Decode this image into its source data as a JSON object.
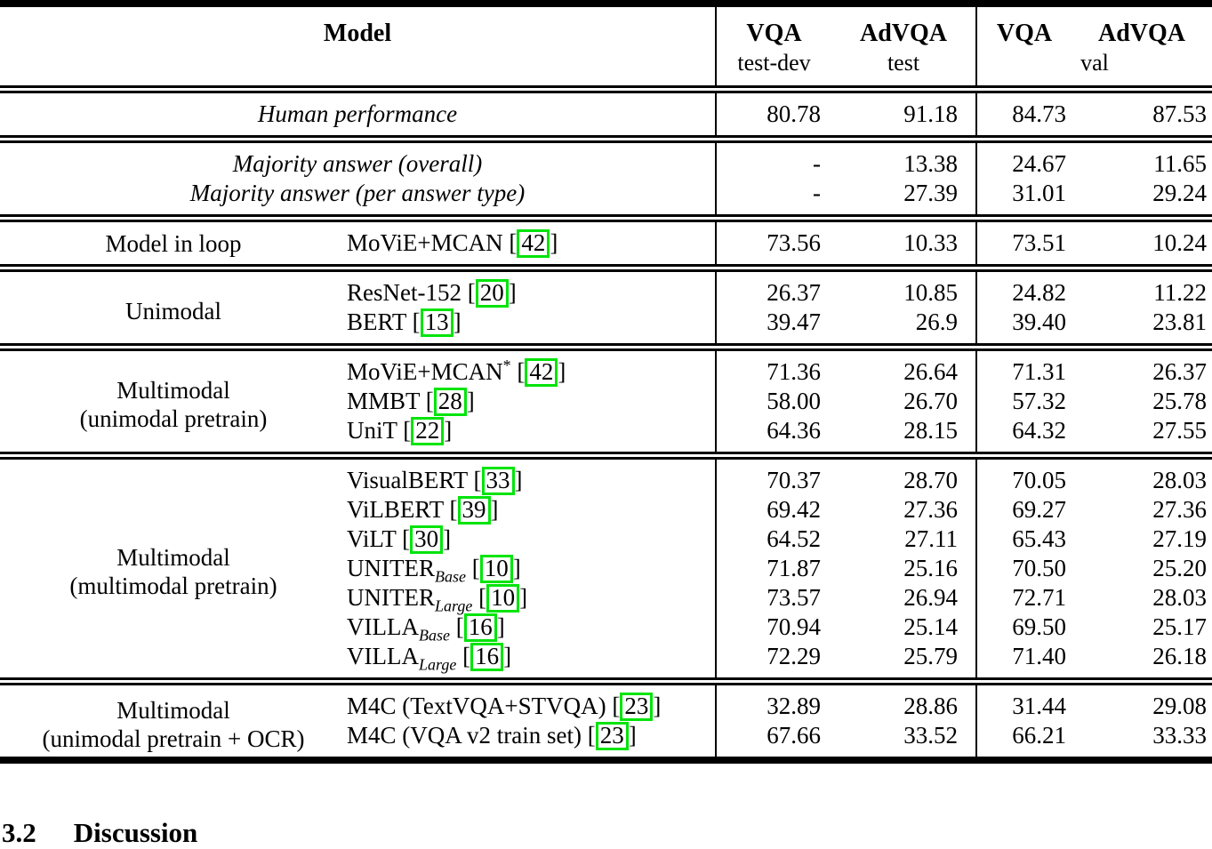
{
  "table": {
    "header": {
      "model": "Model",
      "group1": {
        "col1_top": "VQA",
        "col1_bottom": "test-dev",
        "col2_top": "AdVQA",
        "col2_bottom": "test"
      },
      "group2": {
        "col1_top": "VQA",
        "col2_top": "AdVQA",
        "bottom": "val"
      }
    },
    "sections": [
      {
        "type": "center",
        "rows": [
          {
            "label": "Human performance",
            "values": [
              "80.78",
              "91.18",
              "84.73",
              "87.53"
            ]
          }
        ]
      },
      {
        "type": "center",
        "rows": [
          {
            "label": "Majority answer (overall)",
            "values": [
              "-",
              "13.38",
              "24.67",
              "11.65"
            ]
          },
          {
            "label": "Majority answer (per answer type)",
            "values": [
              "-",
              "27.39",
              "31.01",
              "29.24"
            ]
          }
        ]
      },
      {
        "type": "models",
        "category": [
          "Model in loop"
        ],
        "rows": [
          {
            "name": "MoViE+MCAN",
            "cite": "42",
            "values": [
              "73.56",
              "10.33",
              "73.51",
              "10.24"
            ]
          }
        ]
      },
      {
        "type": "models",
        "category": [
          "Unimodal"
        ],
        "rows": [
          {
            "name": "ResNet-152",
            "cite": "20",
            "values": [
              "26.37",
              "10.85",
              "24.82",
              "11.22"
            ]
          },
          {
            "name": "BERT",
            "cite": "13",
            "values": [
              "39.47",
              "26.9",
              "39.40",
              "23.81"
            ]
          }
        ]
      },
      {
        "type": "models",
        "category": [
          "Multimodal",
          "(unimodal pretrain)"
        ],
        "rows": [
          {
            "name": "MoViE+MCAN",
            "sup": "*",
            "cite": "42",
            "values": [
              "71.36",
              "26.64",
              "71.31",
              "26.37"
            ]
          },
          {
            "name": "MMBT",
            "cite": "28",
            "values": [
              "58.00",
              "26.70",
              "57.32",
              "25.78"
            ]
          },
          {
            "name": "UniT",
            "cite": "22",
            "values": [
              "64.36",
              "28.15",
              "64.32",
              "27.55"
            ]
          }
        ]
      },
      {
        "type": "models",
        "category": [
          "Multimodal",
          "(multimodal pretrain)"
        ],
        "rows": [
          {
            "name": "VisualBERT",
            "cite": "33",
            "values": [
              "70.37",
              "28.70",
              "70.05",
              "28.03"
            ]
          },
          {
            "name": "ViLBERT",
            "cite": "39",
            "values": [
              "69.42",
              "27.36",
              "69.27",
              "27.36"
            ]
          },
          {
            "name": "ViLT",
            "cite": "30",
            "values": [
              "64.52",
              "27.11",
              "65.43",
              "27.19"
            ]
          },
          {
            "name": "UNITER",
            "sub": "Base",
            "cite": "10",
            "values": [
              "71.87",
              "25.16",
              "70.50",
              "25.20"
            ]
          },
          {
            "name": "UNITER",
            "sub": "Large",
            "cite": "10",
            "values": [
              "73.57",
              "26.94",
              "72.71",
              "28.03"
            ]
          },
          {
            "name": "VILLA",
            "sub": "Base",
            "cite": "16",
            "values": [
              "70.94",
              "25.14",
              "69.50",
              "25.17"
            ]
          },
          {
            "name": "VILLA",
            "sub": "Large",
            "cite": "16",
            "values": [
              "72.29",
              "25.79",
              "71.40",
              "26.18"
            ]
          }
        ]
      },
      {
        "type": "models",
        "category": [
          "Multimodal",
          "(unimodal pretrain + OCR)"
        ],
        "rows": [
          {
            "name": "M4C (TextVQA+STVQA)",
            "cite": "23",
            "values": [
              "32.89",
              "28.86",
              "31.44",
              "29.08"
            ]
          },
          {
            "name": "M4C (VQA v2 train set)",
            "cite": "23",
            "values": [
              "67.66",
              "33.52",
              "66.21",
              "33.33"
            ]
          }
        ]
      }
    ]
  },
  "section_heading": {
    "number": "3.2",
    "title": "Discussion"
  },
  "colors": {
    "citation_box": "#00e40a",
    "text": "#000000",
    "background": "#ffffff"
  }
}
